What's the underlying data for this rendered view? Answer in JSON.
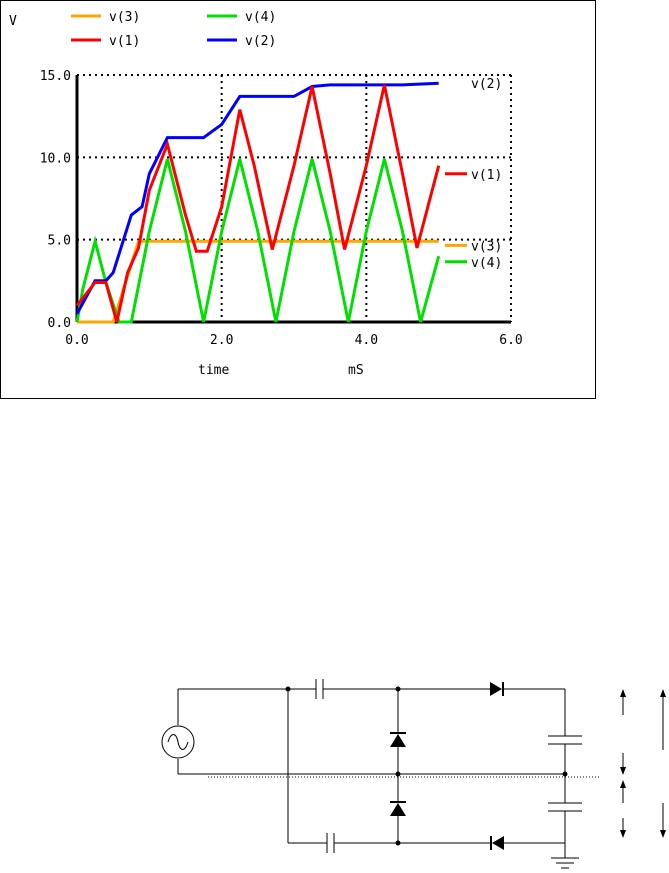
{
  "chart_data": {
    "type": "line",
    "ylabel": "V",
    "xlabel": "time",
    "xunit": "mS",
    "xlim": [
      0,
      6
    ],
    "ylim": [
      0,
      15
    ],
    "x_ticks": [
      "0.0",
      "2.0",
      "4.0",
      "6.0"
    ],
    "y_ticks": [
      "0.0",
      "5.0",
      "10.0",
      "15.0"
    ],
    "grid": "dotted",
    "legend": [
      "v(3)",
      "v(4)",
      "v(1)",
      "v(2)"
    ],
    "series": [
      {
        "name": "v(3)",
        "color": "#ffa500",
        "x": [
          0,
          0.5,
          0.85,
          1.0,
          5.0
        ],
        "y": [
          0,
          0,
          4.9,
          4.9,
          4.9
        ]
      },
      {
        "name": "v(4)",
        "color": "#00e000",
        "x": [
          0,
          0.08,
          0.25,
          0.4,
          0.58,
          0.75,
          1.0,
          1.25,
          1.5,
          1.75,
          2.0,
          2.25,
          2.5,
          2.75,
          3.0,
          3.25,
          3.5,
          3.75,
          4.0,
          4.25,
          4.5,
          4.75,
          5.0
        ],
        "y": [
          0,
          2.0,
          4.9,
          2.4,
          0.0,
          0.0,
          5.5,
          9.9,
          5.5,
          0.0,
          5.5,
          9.9,
          5.5,
          0.0,
          5.5,
          9.9,
          5.5,
          0.0,
          5.5,
          9.9,
          5.5,
          0.0,
          4.0
        ]
      },
      {
        "name": "v(1)",
        "color": "#ff0000",
        "x": [
          0,
          0.25,
          0.4,
          0.55,
          0.7,
          0.85,
          1.0,
          1.25,
          1.5,
          1.65,
          1.8,
          2.0,
          2.25,
          2.45,
          2.7,
          3.0,
          3.25,
          3.5,
          3.7,
          4.0,
          4.25,
          4.5,
          4.7,
          5.0
        ],
        "y": [
          1.0,
          2.4,
          2.4,
          0.0,
          3.0,
          4.5,
          8.0,
          10.8,
          6.5,
          4.3,
          4.3,
          7.0,
          12.9,
          9.5,
          4.4,
          9.5,
          14.3,
          9.0,
          4.4,
          9.5,
          14.4,
          9.0,
          4.5,
          9.5
        ]
      },
      {
        "name": "v(2)",
        "color": "#0000ff",
        "x": [
          0,
          0.25,
          0.4,
          0.5,
          0.75,
          0.9,
          1.0,
          1.25,
          1.75,
          2.0,
          2.25,
          2.5,
          3.0,
          3.25,
          3.5,
          4.0,
          4.5,
          5.0
        ],
        "y": [
          0.5,
          2.5,
          2.5,
          3.0,
          6.5,
          7.0,
          9.0,
          11.2,
          11.2,
          12.0,
          13.7,
          13.7,
          13.7,
          14.3,
          14.4,
          14.4,
          14.4,
          14.5
        ]
      }
    ],
    "end_labels": [
      "v(2)",
      "v(1)",
      "v(3)",
      "v(4)"
    ]
  }
}
